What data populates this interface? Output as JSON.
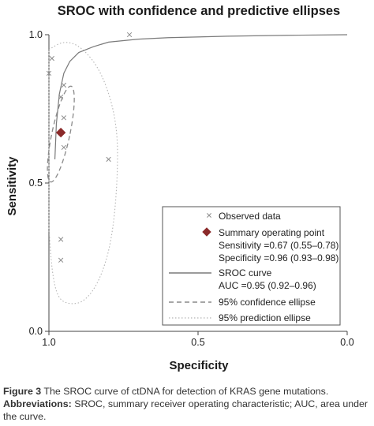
{
  "chart_data": {
    "type": "scatter",
    "title": "SROC with confidence and predictive ellipses",
    "xlabel": "Specificity",
    "ylabel": "Sensitivity",
    "x_reversed": true,
    "xlim": [
      1.0,
      0.0
    ],
    "ylim": [
      0.0,
      1.0
    ],
    "x_ticks": [
      "1.0",
      "0.5",
      "0.0"
    ],
    "y_ticks": [
      "0.0",
      "0.5",
      "1.0"
    ],
    "grid": false,
    "legend_position": "bottom-right",
    "observed_points": [
      {
        "specificity": 1.0,
        "sensitivity": 0.87
      },
      {
        "specificity": 0.99,
        "sensitivity": 0.92
      },
      {
        "specificity": 0.73,
        "sensitivity": 1.0
      },
      {
        "specificity": 0.95,
        "sensitivity": 0.83
      },
      {
        "specificity": 0.96,
        "sensitivity": 0.79
      },
      {
        "specificity": 0.95,
        "sensitivity": 0.72
      },
      {
        "specificity": 0.96,
        "sensitivity": 0.67
      },
      {
        "specificity": 0.95,
        "sensitivity": 0.62
      },
      {
        "specificity": 0.8,
        "sensitivity": 0.58
      },
      {
        "specificity": 0.96,
        "sensitivity": 0.31
      },
      {
        "specificity": 0.96,
        "sensitivity": 0.24
      }
    ],
    "summary_point": {
      "specificity": 0.96,
      "sensitivity": 0.67
    },
    "sroc_curve": [
      {
        "specificity": 0.98,
        "sensitivity": 0.58
      },
      {
        "specificity": 0.975,
        "sensitivity": 0.7
      },
      {
        "specificity": 0.965,
        "sensitivity": 0.8
      },
      {
        "specificity": 0.95,
        "sensitivity": 0.87
      },
      {
        "specificity": 0.93,
        "sensitivity": 0.91
      },
      {
        "specificity": 0.9,
        "sensitivity": 0.94
      },
      {
        "specificity": 0.85,
        "sensitivity": 0.96
      },
      {
        "specificity": 0.8,
        "sensitivity": 0.975
      },
      {
        "specificity": 0.7,
        "sensitivity": 0.985
      },
      {
        "specificity": 0.6,
        "sensitivity": 0.99
      },
      {
        "specificity": 0.4,
        "sensitivity": 0.995
      },
      {
        "specificity": 0.2,
        "sensitivity": 0.998
      },
      {
        "specificity": 0.0,
        "sensitivity": 1.0
      }
    ],
    "confidence_ellipse": {
      "center_specificity": 0.96,
      "center_sensitivity": 0.665,
      "half_width_specificity": 0.03,
      "half_height_sensitivity": 0.165
    },
    "prediction_ellipse": [
      {
        "specificity": 1.0,
        "sensitivity": 0.95
      },
      {
        "specificity": 0.95,
        "sensitivity": 0.98
      },
      {
        "specificity": 0.89,
        "sensitivity": 0.96
      },
      {
        "specificity": 0.82,
        "sensitivity": 0.87
      },
      {
        "specificity": 0.77,
        "sensitivity": 0.7
      },
      {
        "specificity": 0.77,
        "sensitivity": 0.5
      },
      {
        "specificity": 0.79,
        "sensitivity": 0.3
      },
      {
        "specificity": 0.83,
        "sensitivity": 0.17
      },
      {
        "specificity": 0.88,
        "sensitivity": 0.1
      },
      {
        "specificity": 0.93,
        "sensitivity": 0.09
      },
      {
        "specificity": 0.97,
        "sensitivity": 0.11
      },
      {
        "specificity": 0.99,
        "sensitivity": 0.2
      },
      {
        "specificity": 1.0,
        "sensitivity": 0.35
      }
    ],
    "legend": [
      {
        "label": "Observed data",
        "marker": "x"
      },
      {
        "label": "Summary operating point",
        "marker": "diamond",
        "details": [
          "Sensitivity =0.67 (0.55–0.78)",
          "Specificity =0.96 (0.93–0.98)"
        ]
      },
      {
        "label": "SROC curve",
        "marker": "solid-line",
        "details": [
          "AUC =0.95 (0.92–0.96)"
        ]
      },
      {
        "label": "95% confidence ellipse",
        "marker": "dashed-line"
      },
      {
        "label": "95% prediction ellipse",
        "marker": "dotted-line"
      }
    ]
  },
  "colors": {
    "summary": "#8b2a2a",
    "sroc": "#7a7a7a",
    "confidence": "#8a8a8a",
    "prediction": "#b5b5b5",
    "observed": "#8c8c8c",
    "axis": "#444444"
  },
  "caption": {
    "figure_label": "Figure 3",
    "figure_text": " The SROC curve of ctDNA for detection of KRAS gene mutations.",
    "abbrev_label": "Abbreviations:",
    "abbrev_text": " SROC, summary receiver operating characteristic; AUC, area under the curve."
  }
}
